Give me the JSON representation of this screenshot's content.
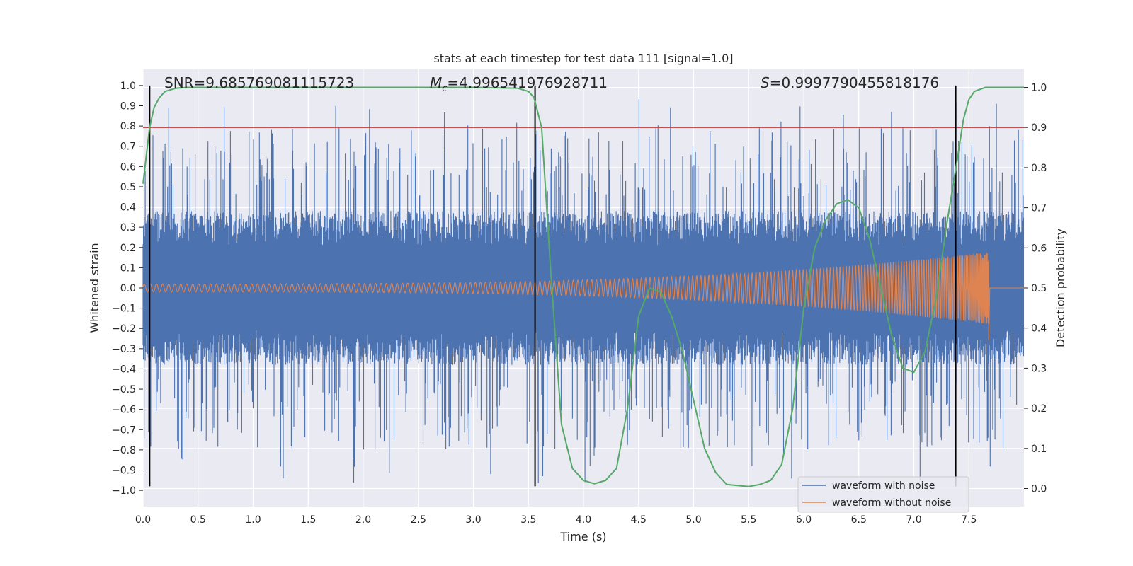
{
  "chart_data": {
    "type": "line",
    "title": "stats at each timestep for test data 111 [signal=1.0]",
    "xlabel": "Time (s)",
    "ylabel_left": "Whitened strain",
    "ylabel_right": "Detection probability",
    "xlim": [
      0.0,
      8.0
    ],
    "ylim_left": [
      -1.08,
      1.08
    ],
    "ylim_right": [
      -0.045,
      1.045
    ],
    "x_ticks": [
      "0.0",
      "0.5",
      "1.0",
      "1.5",
      "2.0",
      "2.5",
      "3.0",
      "3.5",
      "4.0",
      "4.5",
      "5.0",
      "5.5",
      "6.0",
      "6.5",
      "7.0",
      "7.5"
    ],
    "x_tick_values": [
      0,
      0.5,
      1,
      1.5,
      2,
      2.5,
      3,
      3.5,
      4,
      4.5,
      5,
      5.5,
      6,
      6.5,
      7,
      7.5
    ],
    "y_left_ticks": [
      "1.0",
      "0.9",
      "0.8",
      "0.7",
      "0.6",
      "0.5",
      "0.4",
      "0.3",
      "0.2",
      "0.1",
      "0.0",
      "−0.1",
      "−0.2",
      "−0.3",
      "−0.4",
      "−0.5",
      "−0.6",
      "−0.7",
      "−0.8",
      "−0.9",
      "−1.0"
    ],
    "y_left_tick_values": [
      1.0,
      0.9,
      0.8,
      0.7,
      0.6,
      0.5,
      0.4,
      0.3,
      0.2,
      0.1,
      0.0,
      -0.1,
      -0.2,
      -0.3,
      -0.4,
      -0.5,
      -0.6,
      -0.7,
      -0.8,
      -0.9,
      -1.0
    ],
    "y_right_ticks": [
      "1.0",
      "0.9",
      "0.8",
      "0.7",
      "0.6",
      "0.5",
      "0.4",
      "0.3",
      "0.2",
      "0.1",
      "0.0"
    ],
    "y_right_tick_values": [
      1.0,
      0.9,
      0.8,
      0.7,
      0.6,
      0.5,
      0.4,
      0.3,
      0.2,
      0.1,
      0.0
    ],
    "annotations": {
      "snr_label": "SNR=9.685769081115723",
      "mc_symbol": "M",
      "mc_subscript": "c",
      "mc_value": "=4.996541976928711",
      "s_symbol": "S",
      "s_value": "=0.9997790455818176"
    },
    "threshold": {
      "value": 0.9,
      "axis": "right",
      "color": "#c44e52"
    },
    "vertical_markers": [
      0.06,
      3.56,
      7.38
    ],
    "series": [
      {
        "name": "waveform with noise",
        "axis": "left",
        "color": "#4c72b0",
        "description_values": {
          "baseline_amplitude": 0.38,
          "peak_max": 0.94,
          "peak_min": -0.97
        }
      },
      {
        "name": "waveform without noise",
        "axis": "left",
        "color": "#dd8452",
        "chirp": {
          "start_amplitude": 0.02,
          "end_amplitude": 0.18,
          "merger_time": 7.68,
          "merger_min": -0.26
        }
      },
      {
        "name": "Detection probability",
        "axis": "right",
        "color": "#55a868",
        "x": [
          0.0,
          0.06,
          0.1,
          0.15,
          0.2,
          0.3,
          0.4,
          0.6,
          1.0,
          2.0,
          3.0,
          3.4,
          3.5,
          3.55,
          3.62,
          3.7,
          3.8,
          3.9,
          4.0,
          4.1,
          4.2,
          4.3,
          4.4,
          4.5,
          4.6,
          4.7,
          4.8,
          4.9,
          5.0,
          5.1,
          5.2,
          5.3,
          5.5,
          5.6,
          5.7,
          5.8,
          5.9,
          6.0,
          6.1,
          6.2,
          6.3,
          6.4,
          6.5,
          6.6,
          6.7,
          6.8,
          6.9,
          7.0,
          7.1,
          7.2,
          7.3,
          7.4,
          7.45,
          7.5,
          7.55,
          7.65,
          7.8,
          8.0
        ],
        "values": [
          0.76,
          0.9,
          0.95,
          0.975,
          0.99,
          0.998,
          1.0,
          1.0,
          1.0,
          1.0,
          1.0,
          0.998,
          0.99,
          0.975,
          0.9,
          0.55,
          0.16,
          0.05,
          0.02,
          0.012,
          0.02,
          0.05,
          0.2,
          0.43,
          0.5,
          0.49,
          0.43,
          0.34,
          0.22,
          0.1,
          0.04,
          0.01,
          0.005,
          0.01,
          0.02,
          0.06,
          0.2,
          0.45,
          0.6,
          0.67,
          0.71,
          0.72,
          0.7,
          0.62,
          0.5,
          0.38,
          0.3,
          0.29,
          0.34,
          0.47,
          0.66,
          0.83,
          0.92,
          0.97,
          0.99,
          1.0,
          1.0,
          1.0
        ]
      }
    ]
  }
}
